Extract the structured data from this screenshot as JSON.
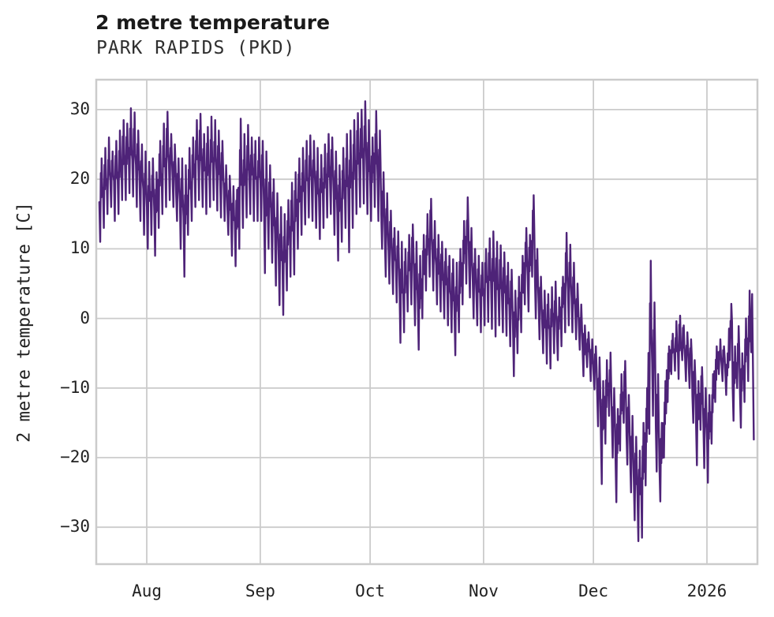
{
  "chart_data": {
    "type": "line",
    "title": "2 metre temperature",
    "subtitle": "PARK RAPIDS (PKD)",
    "xlabel": "",
    "ylabel": "2 metre temperature [C]",
    "legend": "none",
    "grid": "on",
    "line_color": "#4e2378",
    "grid_color": "#cbcbcb",
    "background_color": "#ffffff",
    "ylim": [
      -35.3,
      34.3
    ],
    "xlim_days": [
      -0.8,
      179.8
    ],
    "y_ticks": [
      {
        "v": 30,
        "label": "30"
      },
      {
        "v": 20,
        "label": "20"
      },
      {
        "v": 10,
        "label": "10"
      },
      {
        "v": 0,
        "label": "0"
      },
      {
        "v": -10,
        "label": "−10"
      },
      {
        "v": -20,
        "label": "−20"
      },
      {
        "v": -30,
        "label": "−30"
      }
    ],
    "x_ticks": [
      {
        "t": 13,
        "label": "Aug"
      },
      {
        "t": 44,
        "label": "Sep"
      },
      {
        "t": 74,
        "label": "Oct"
      },
      {
        "t": 105,
        "label": "Nov"
      },
      {
        "t": 135,
        "label": "Dec"
      },
      {
        "t": 166,
        "label": "2026"
      }
    ],
    "series_name": "2 metre temperature",
    "daily_min_max_estimated": [
      [
        "Jul 19",
        11,
        23
      ],
      [
        "Jul 20",
        13,
        24.5
      ],
      [
        "Jul 21",
        15,
        26
      ],
      [
        "Jul 22",
        16,
        24
      ],
      [
        "Jul 23",
        14,
        25.5
      ],
      [
        "Jul 24",
        15,
        27
      ],
      [
        "Jul 25",
        17,
        28.5
      ],
      [
        "Jul 26",
        17,
        28
      ],
      [
        "Jul 27",
        18,
        30.2
      ],
      [
        "Jul 28",
        17.5,
        29.6
      ],
      [
        "Jul 29",
        16,
        27
      ],
      [
        "Jul 30",
        14,
        25
      ],
      [
        "Jul 31",
        12,
        24
      ],
      [
        "Aug 1",
        10,
        22.5
      ],
      [
        "Aug 2",
        12,
        23
      ],
      [
        "Aug 3",
        9,
        21
      ],
      [
        "Aug 4",
        13,
        25.5
      ],
      [
        "Aug 5",
        15,
        28
      ],
      [
        "Aug 6",
        16,
        29.7
      ],
      [
        "Aug 7",
        17,
        26.5
      ],
      [
        "Aug 8",
        16,
        25
      ],
      [
        "Aug 9",
        14,
        23
      ],
      [
        "Aug 10",
        10,
        23
      ],
      [
        "Aug 11",
        6,
        22
      ],
      [
        "Aug 12",
        12,
        24.5
      ],
      [
        "Aug 13",
        14,
        26
      ],
      [
        "Aug 14",
        16,
        28.5
      ],
      [
        "Aug 15",
        17,
        29.4
      ],
      [
        "Aug 16",
        16,
        26.5
      ],
      [
        "Aug 17",
        15,
        27.5
      ],
      [
        "Aug 18",
        16,
        29
      ],
      [
        "Aug 19",
        17,
        28.5
      ],
      [
        "Aug 20",
        15.5,
        27
      ],
      [
        "Aug 21",
        14.5,
        25.5
      ],
      [
        "Aug 22",
        14,
        22
      ],
      [
        "Aug 23",
        12,
        20.5
      ],
      [
        "Aug 24",
        9,
        19
      ],
      [
        "Aug 25",
        7.5,
        18.5
      ],
      [
        "Aug 26",
        10,
        28.7
      ],
      [
        "Aug 27",
        13,
        26.5
      ],
      [
        "Aug 28",
        14.5,
        27.8
      ],
      [
        "Aug 29",
        15,
        26
      ],
      [
        "Aug 30",
        14,
        25.5
      ],
      [
        "Aug 31",
        14,
        26
      ],
      [
        "Sep 1",
        14,
        25.5
      ],
      [
        "Sep 2",
        6.5,
        24
      ],
      [
        "Sep 3",
        10,
        22
      ],
      [
        "Sep 4",
        8,
        20
      ],
      [
        "Sep 5",
        4.7,
        18
      ],
      [
        "Sep 6",
        1.9,
        16
      ],
      [
        "Sep 7",
        0.5,
        15
      ],
      [
        "Sep 8",
        4,
        17
      ],
      [
        "Sep 9",
        6,
        19.5
      ],
      [
        "Sep 10",
        6.3,
        21
      ],
      [
        "Sep 11",
        10,
        23
      ],
      [
        "Sep 12",
        12,
        24.5
      ],
      [
        "Sep 13",
        13.5,
        25.5
      ],
      [
        "Sep 14",
        14.5,
        26.3
      ],
      [
        "Sep 15",
        14,
        25.5
      ],
      [
        "Sep 16",
        13,
        24.5
      ],
      [
        "Sep 17",
        11.4,
        23.5
      ],
      [
        "Sep 18",
        13,
        25
      ],
      [
        "Sep 19",
        14.5,
        26.5
      ],
      [
        "Sep 20",
        15,
        26
      ],
      [
        "Sep 21",
        12,
        24
      ],
      [
        "Sep 22",
        8.3,
        22
      ],
      [
        "Sep 23",
        11,
        24.5
      ],
      [
        "Sep 24",
        13,
        26.5
      ],
      [
        "Sep 25",
        9.5,
        27
      ],
      [
        "Sep 26",
        13,
        28.5
      ],
      [
        "Sep 27",
        15,
        29.5
      ],
      [
        "Sep 28",
        16,
        30
      ],
      [
        "Sep 29",
        16.5,
        31.2
      ],
      [
        "Sep 30",
        15,
        28.5
      ],
      [
        "Oct 1",
        14,
        26
      ],
      [
        "Oct 2",
        16,
        29.8
      ],
      [
        "Oct 3",
        14,
        27
      ],
      [
        "Oct 4",
        10,
        21
      ],
      [
        "Oct 5",
        6,
        18
      ],
      [
        "Oct 6",
        5,
        15.5
      ],
      [
        "Oct 7",
        3.5,
        13
      ],
      [
        "Oct 8",
        2.3,
        12.5
      ],
      [
        "Oct 9",
        -3.5,
        11
      ],
      [
        "Oct 10",
        -2,
        10
      ],
      [
        "Oct 11",
        1,
        12
      ],
      [
        "Oct 12",
        2,
        13.5
      ],
      [
        "Oct 13",
        -1,
        11
      ],
      [
        "Oct 14",
        -4.5,
        9
      ],
      [
        "Oct 15",
        0,
        12
      ],
      [
        "Oct 16",
        4,
        15
      ],
      [
        "Oct 17",
        6,
        17.2
      ],
      [
        "Oct 18",
        4,
        14
      ],
      [
        "Oct 19",
        2,
        12
      ],
      [
        "Oct 20",
        1,
        11
      ],
      [
        "Oct 21",
        0,
        10
      ],
      [
        "Oct 22",
        -1,
        9
      ],
      [
        "Oct 23",
        -2,
        8.5
      ],
      [
        "Oct 24",
        -5.3,
        8
      ],
      [
        "Oct 25",
        -2,
        10
      ],
      [
        "Oct 26",
        2,
        14
      ],
      [
        "Oct 27",
        5,
        17.4
      ],
      [
        "Oct 28",
        3,
        13
      ],
      [
        "Oct 29",
        0,
        10
      ],
      [
        "Oct 30",
        -1,
        9
      ],
      [
        "Oct 31",
        -2,
        8
      ],
      [
        "Nov 1",
        -1,
        10
      ],
      [
        "Nov 2",
        -0.5,
        11.5
      ],
      [
        "Nov 3",
        -1.5,
        12.5
      ],
      [
        "Nov 4",
        -2.6,
        11
      ],
      [
        "Nov 5",
        -1,
        10.5
      ],
      [
        "Nov 6",
        -2,
        9.5
      ],
      [
        "Nov 7",
        -2.5,
        8
      ],
      [
        "Nov 8",
        -4,
        7
      ],
      [
        "Nov 9",
        -8.3,
        4
      ],
      [
        "Nov 10",
        -5,
        6
      ],
      [
        "Nov 11",
        -2,
        9
      ],
      [
        "Nov 12",
        2,
        13
      ],
      [
        "Nov 13",
        1,
        12
      ],
      [
        "Nov 14",
        6,
        17.7
      ],
      [
        "Nov 15",
        0,
        10
      ],
      [
        "Nov 16",
        -3,
        6
      ],
      [
        "Nov 17",
        -5,
        4
      ],
      [
        "Nov 18",
        -6.5,
        3.5
      ],
      [
        "Nov 19",
        -7.2,
        4.5
      ],
      [
        "Nov 20",
        -5,
        5.3
      ],
      [
        "Nov 21",
        -6,
        3
      ],
      [
        "Nov 22",
        -4,
        6
      ],
      [
        "Nov 23",
        -2,
        12.3
      ],
      [
        "Nov 24",
        -1,
        10.6
      ],
      [
        "Nov 25",
        -2,
        8
      ],
      [
        "Nov 26",
        -3,
        5
      ],
      [
        "Nov 27",
        -4.5,
        2
      ],
      [
        "Nov 28",
        -8.3,
        -1
      ],
      [
        "Nov 29",
        -7,
        -2
      ],
      [
        "Nov 30",
        -9,
        -3
      ],
      [
        "Dec 1",
        -10.2,
        -4
      ],
      [
        "Dec 2",
        -15.5,
        -5.6
      ],
      [
        "Dec 3",
        -23.8,
        -9
      ],
      [
        "Dec 4",
        -18,
        -6
      ],
      [
        "Dec 5",
        -14,
        -4.9
      ],
      [
        "Dec 6",
        -20,
        -10
      ],
      [
        "Dec 7",
        -26.4,
        -13
      ],
      [
        "Dec 8",
        -19,
        -8
      ],
      [
        "Dec 9",
        -15,
        -6.1
      ],
      [
        "Dec 10",
        -21,
        -11
      ],
      [
        "Dec 11",
        -25,
        -14
      ],
      [
        "Dec 12",
        -29,
        -17
      ],
      [
        "Dec 13",
        -32,
        -19
      ],
      [
        "Dec 14",
        -31.5,
        -15
      ],
      [
        "Dec 15",
        -24,
        -10
      ],
      [
        "Dec 16",
        -16.6,
        8.3
      ],
      [
        "Dec 17",
        -14,
        2.3
      ],
      [
        "Dec 18",
        -22,
        -8
      ],
      [
        "Dec 19",
        -26.3,
        -15
      ],
      [
        "Dec 20",
        -20,
        -9
      ],
      [
        "Dec 21",
        -12,
        -4
      ],
      [
        "Dec 22",
        -8,
        -2.2
      ],
      [
        "Dec 23",
        -7.5,
        -0.4
      ],
      [
        "Dec 24",
        -8.7,
        0.4
      ],
      [
        "Dec 25",
        -6,
        -1
      ],
      [
        "Dec 26",
        -9,
        -2
      ],
      [
        "Dec 27",
        -10,
        -3
      ],
      [
        "Dec 28",
        -15,
        -6
      ],
      [
        "Dec 29",
        -21.1,
        -9
      ],
      [
        "Dec 30",
        -16,
        -7
      ],
      [
        "Dec 31",
        -21.5,
        -10
      ],
      [
        "Jan 1",
        -23.6,
        -11
      ],
      [
        "Jan 2",
        -18,
        -8
      ],
      [
        "Jan 3",
        -12,
        -4
      ],
      [
        "Jan 4",
        -8,
        -3
      ],
      [
        "Jan 5",
        -9,
        -4
      ],
      [
        "Jan 6",
        -11,
        -5
      ],
      [
        "Jan 7",
        -6,
        2.1
      ],
      [
        "Jan 8",
        -14.7,
        -4
      ],
      [
        "Jan 9",
        -10,
        -1.1
      ],
      [
        "Jan 10",
        -15.7,
        -5
      ],
      [
        "Jan 11",
        -12,
        0
      ],
      [
        "Jan 12",
        -9,
        4
      ],
      [
        "Jan 13",
        -17.4,
        3.5
      ]
    ]
  }
}
